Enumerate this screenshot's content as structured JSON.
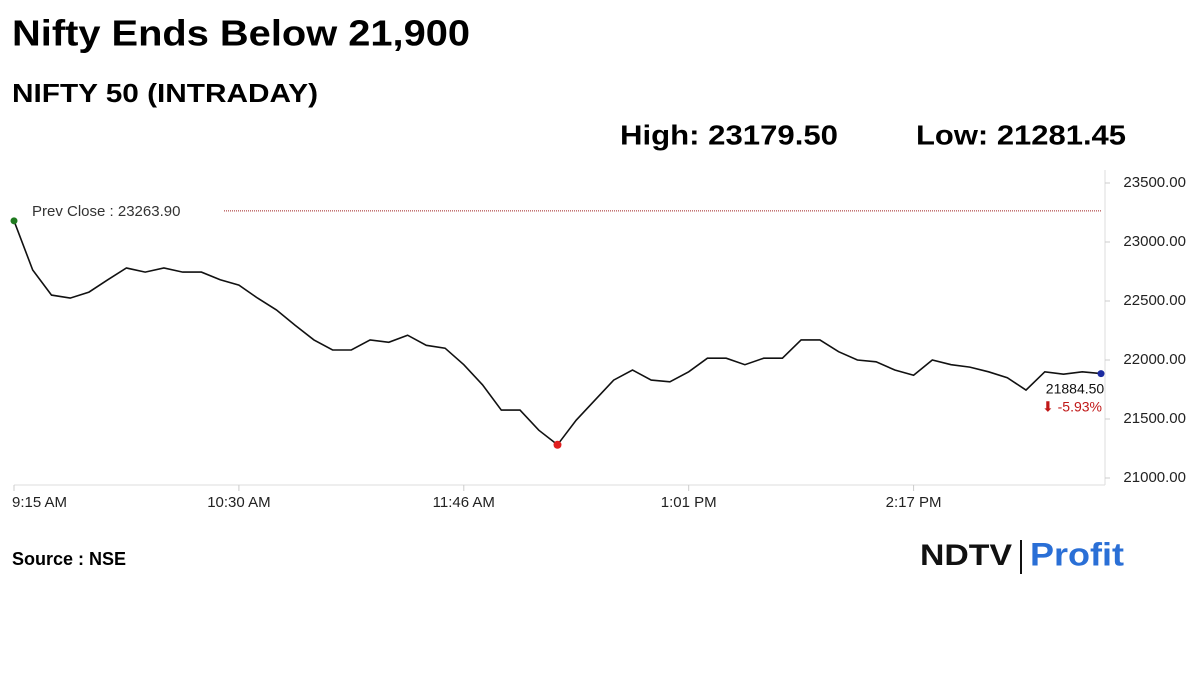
{
  "chart_data": {
    "type": "line",
    "title": "Nifty Ends Below 21,900",
    "subtitle": "NIFTY 50 (INTRADAY)",
    "high": {
      "value": 23179.5,
      "label": "High: 23179.50"
    },
    "low": {
      "value": 21281.45,
      "label": "Low: 21281.45"
    },
    "prev_close": {
      "value": 23263.9,
      "label": "Prev Close : 23263.90"
    },
    "end_label": {
      "value": 21884.5,
      "label": "21884.50"
    },
    "change": {
      "value": -5.93,
      "label": "⬇ -5.93%"
    },
    "categories": [
      "9:15 AM",
      null,
      null,
      null,
      null,
      null,
      null,
      null,
      null,
      null,
      null,
      null,
      "10:30 AM",
      null,
      null,
      null,
      null,
      null,
      null,
      null,
      null,
      null,
      null,
      null,
      "11:46 AM",
      null,
      null,
      null,
      null,
      null,
      null,
      null,
      null,
      null,
      null,
      null,
      "1:01 PM",
      null,
      null,
      null,
      null,
      null,
      null,
      null,
      null,
      null,
      null,
      null,
      "2:17 PM",
      null,
      null,
      null,
      null,
      null,
      null,
      null,
      null,
      null,
      null
    ],
    "values": [
      23179.5,
      22763,
      22550,
      22525,
      22575,
      22680,
      22780,
      22745,
      22780,
      22745,
      22745,
      22680,
      22635,
      22525,
      22425,
      22295,
      22170,
      22085,
      22085,
      22170,
      22150,
      22210,
      22125,
      22100,
      21960,
      21790,
      21575,
      21575,
      21405,
      21281.45,
      21490,
      21660,
      21830,
      21915,
      21830,
      21815,
      21900,
      22015,
      22015,
      21960,
      22015,
      22015,
      22170,
      22170,
      22070,
      22000,
      21985,
      21915,
      21870,
      22000,
      21960,
      21940,
      21900,
      21850,
      21745,
      21900,
      21880,
      21900,
      21884.5
    ],
    "color": "#111111",
    "ylim": [
      21000,
      23500
    ],
    "yticks": [
      {
        "value": 21000,
        "label": "21000.00"
      },
      {
        "value": 21500,
        "label": "21500.00"
      },
      {
        "value": 22000,
        "label": "22000.00"
      },
      {
        "value": 22500,
        "label": "22500.00"
      },
      {
        "value": 23000,
        "label": "23000.00"
      },
      {
        "value": 23500,
        "label": "23500.00"
      }
    ]
  },
  "source": "Source : NSE",
  "brand": {
    "name": "NDTV",
    "sub": "Profit"
  }
}
